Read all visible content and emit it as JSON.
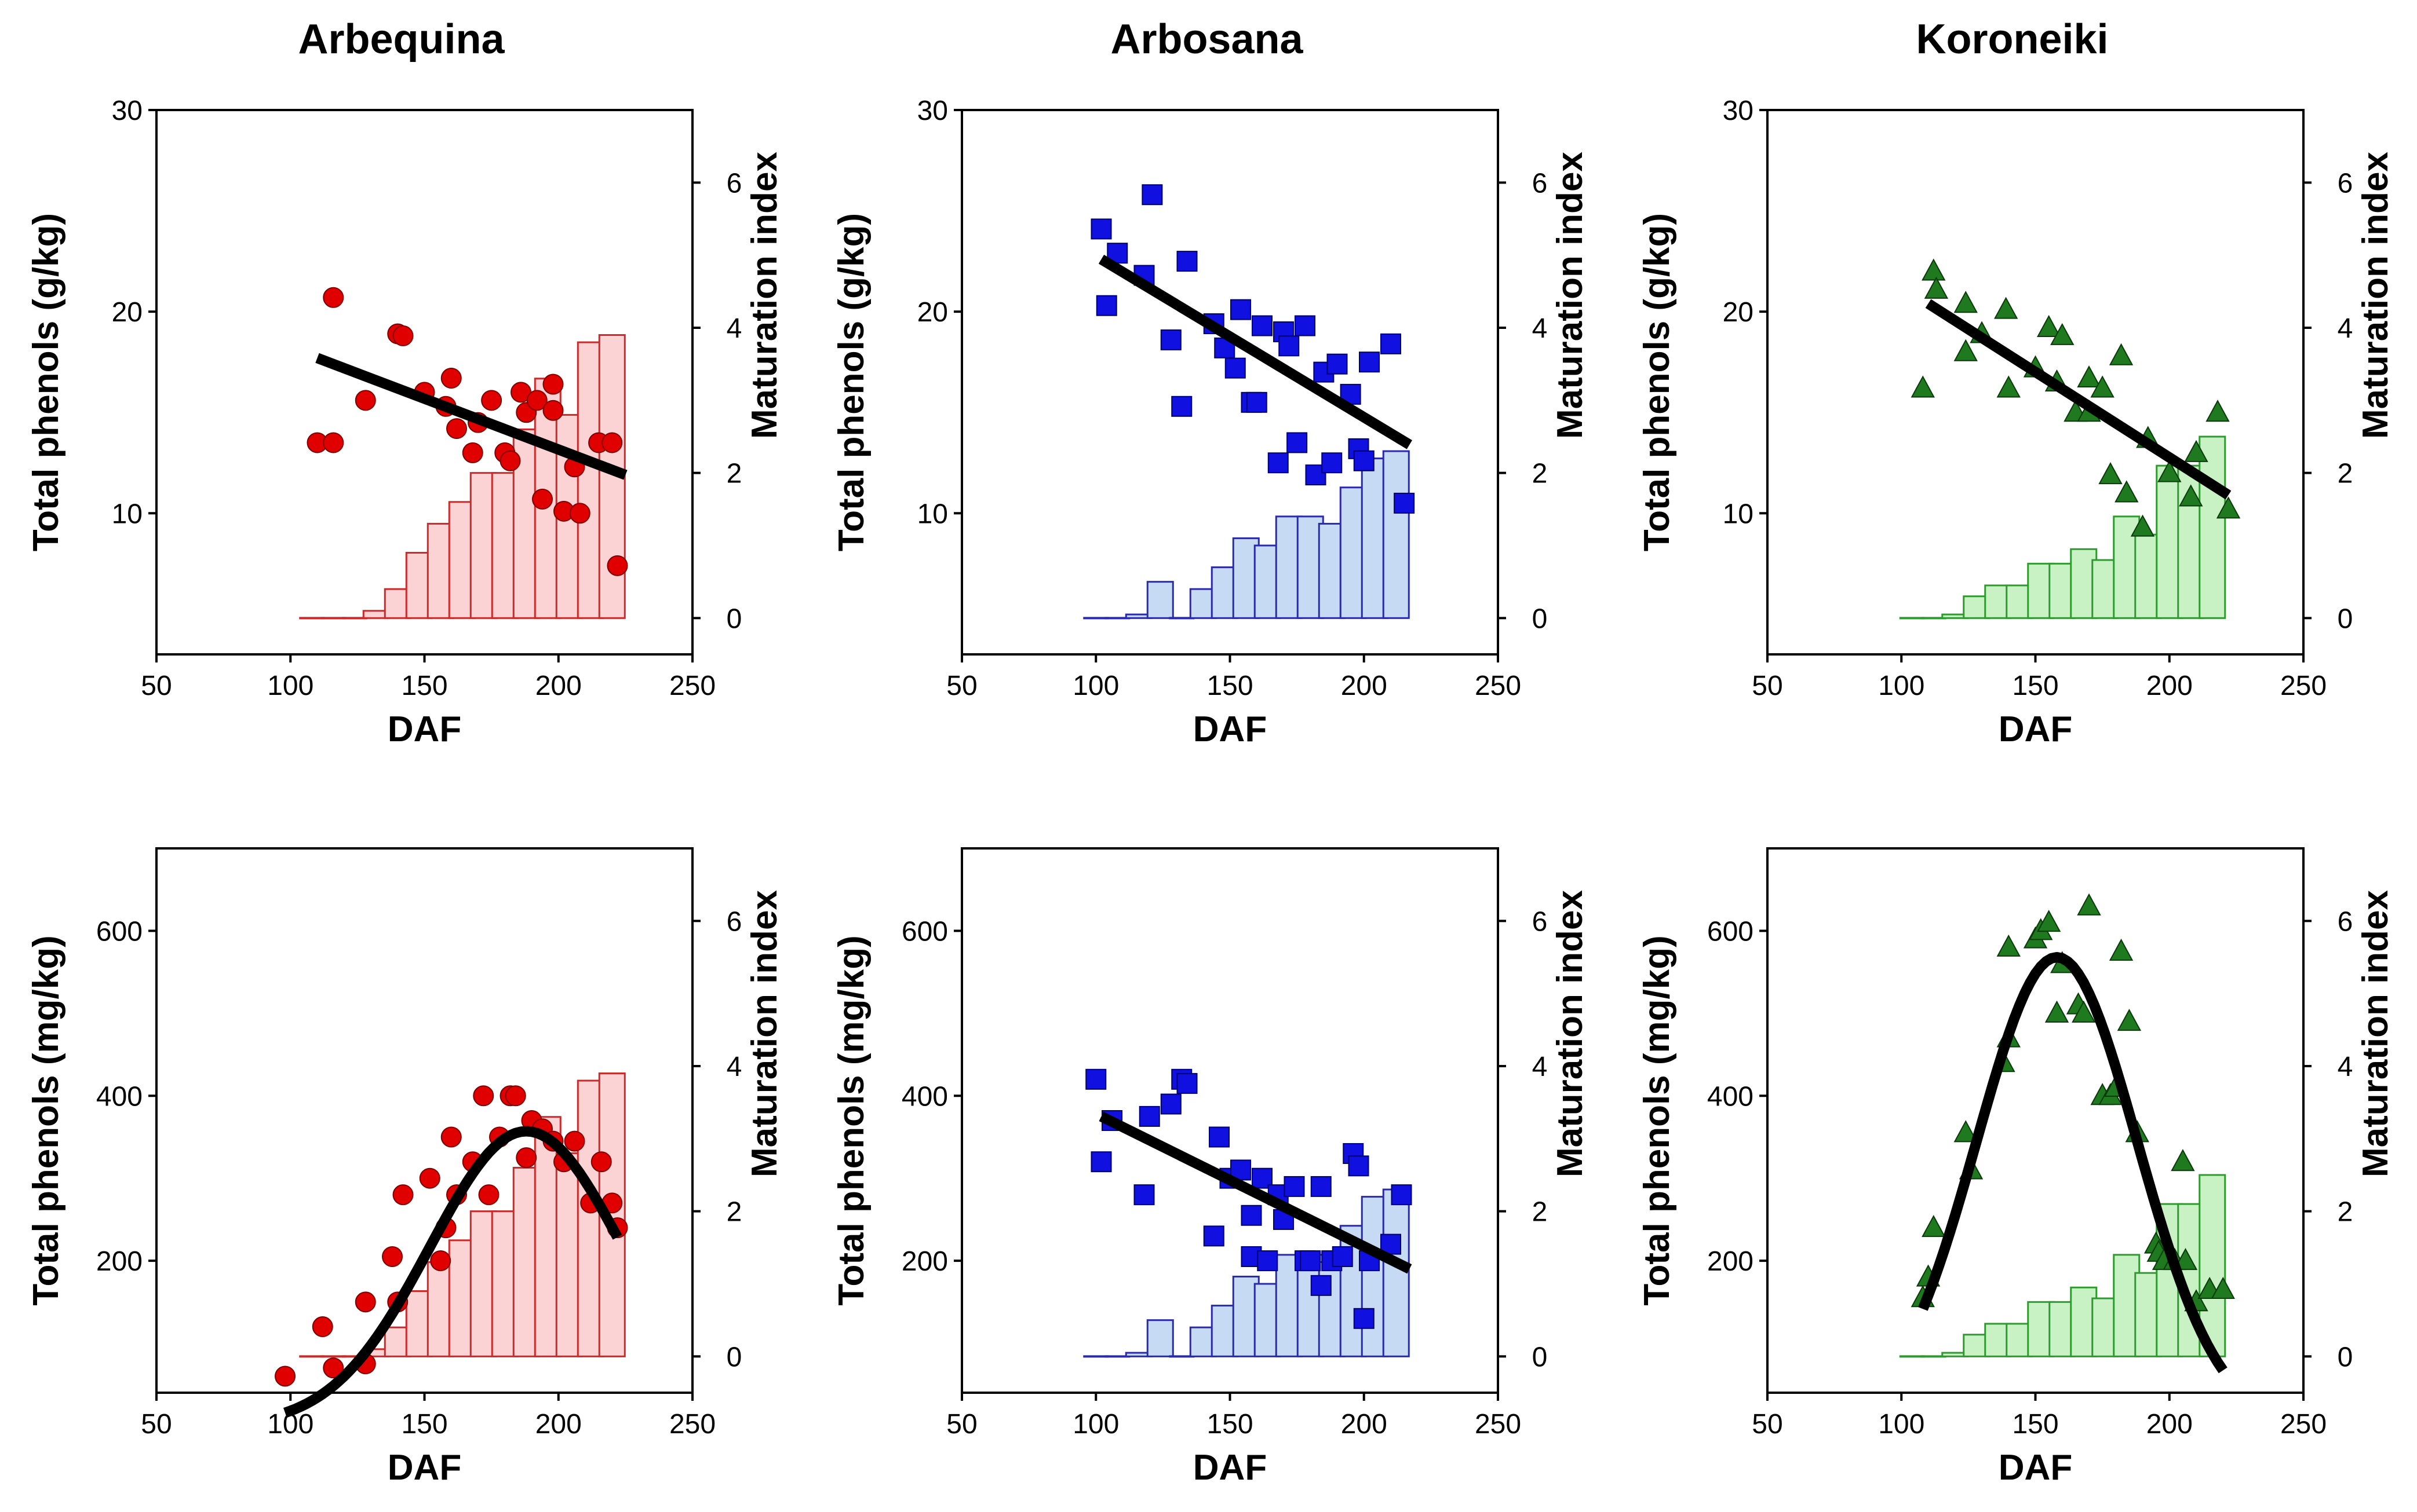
{
  "chart_data": [
    {
      "type": "scatter+bar",
      "title": "Arbequina",
      "xlabel": "DAF",
      "ylabel": "Total phenols (g/kg)",
      "y2label": "Maturation index",
      "xlim": [
        50,
        250
      ],
      "ylim": [
        3,
        30
      ],
      "y2lim": [
        -0.5,
        7
      ],
      "xticks": [
        50,
        100,
        150,
        200,
        250
      ],
      "yticks": [
        10,
        20,
        30
      ],
      "y2ticks": [
        0,
        2,
        4,
        6
      ],
      "color": "#e00000",
      "bar_fill": "#fbd3d5",
      "bar_edge": "#cc2a2a",
      "marker": "circle",
      "points": [
        [
          110,
          13.5
        ],
        [
          116,
          20.7
        ],
        [
          116,
          13.5
        ],
        [
          128,
          15.6
        ],
        [
          140,
          18.9
        ],
        [
          142,
          18.8
        ],
        [
          150,
          16.0
        ],
        [
          158,
          15.3
        ],
        [
          160,
          16.7
        ],
        [
          162,
          14.2
        ],
        [
          168,
          13.0
        ],
        [
          170,
          14.5
        ],
        [
          175,
          15.6
        ],
        [
          180,
          13.0
        ],
        [
          182,
          12.6
        ],
        [
          186,
          16.0
        ],
        [
          188,
          15.0
        ],
        [
          192,
          15.6
        ],
        [
          194,
          10.7
        ],
        [
          198,
          16.4
        ],
        [
          198,
          15.1
        ],
        [
          202,
          10.1
        ],
        [
          206,
          12.3
        ],
        [
          208,
          10.0
        ],
        [
          215,
          13.5
        ],
        [
          220,
          13.5
        ],
        [
          222,
          7.4
        ]
      ],
      "fit": {
        "kind": "linear",
        "points": [
          [
            110,
            17.7
          ],
          [
            225,
            11.9
          ]
        ]
      },
      "bars": {
        "x": [
          108,
          116,
          124,
          132,
          140,
          148,
          156,
          164,
          172,
          180,
          188,
          196,
          204,
          212,
          220
        ],
        "values": [
          0,
          0,
          0,
          0.1,
          0.4,
          0.9,
          1.3,
          1.6,
          2.0,
          2.0,
          2.6,
          3.3,
          2.8,
          3.8,
          3.9
        ]
      }
    },
    {
      "type": "scatter+bar",
      "title": "Arbosana",
      "xlabel": "DAF",
      "ylabel": "Total phenols (g/kg)",
      "y2label": "Maturation index",
      "xlim": [
        50,
        250
      ],
      "ylim": [
        3,
        30
      ],
      "y2lim": [
        -0.5,
        7
      ],
      "xticks": [
        50,
        100,
        150,
        200,
        250
      ],
      "yticks": [
        10,
        20,
        30
      ],
      "y2ticks": [
        0,
        2,
        4,
        6
      ],
      "color": "#1010e0",
      "bar_fill": "#c7daf4",
      "bar_edge": "#2a2ab0",
      "marker": "square",
      "points": [
        [
          102,
          24.1
        ],
        [
          104,
          20.3
        ],
        [
          108,
          22.9
        ],
        [
          118,
          21.8
        ],
        [
          121,
          25.8
        ],
        [
          128,
          18.6
        ],
        [
          132,
          15.3
        ],
        [
          134,
          22.5
        ],
        [
          144,
          19.4
        ],
        [
          148,
          18.2
        ],
        [
          152,
          17.2
        ],
        [
          154,
          20.1
        ],
        [
          158,
          15.5
        ],
        [
          160,
          15.5
        ],
        [
          162,
          19.3
        ],
        [
          168,
          12.5
        ],
        [
          170,
          19.0
        ],
        [
          172,
          18.3
        ],
        [
          175,
          13.5
        ],
        [
          178,
          19.3
        ],
        [
          182,
          11.9
        ],
        [
          185,
          17.0
        ],
        [
          188,
          12.5
        ],
        [
          190,
          17.4
        ],
        [
          195,
          15.9
        ],
        [
          198,
          13.2
        ],
        [
          200,
          12.6
        ],
        [
          202,
          17.5
        ],
        [
          210,
          18.4
        ],
        [
          215,
          10.5
        ]
      ],
      "fit": {
        "kind": "linear",
        "points": [
          [
            102,
            22.6
          ],
          [
            217,
            13.4
          ]
        ]
      },
      "bars": {
        "x": [
          100,
          108,
          116,
          124,
          132,
          140,
          148,
          156,
          164,
          172,
          180,
          188,
          196,
          204,
          212
        ],
        "values": [
          0,
          0,
          0.05,
          0.5,
          0,
          0.4,
          0.7,
          1.1,
          1.0,
          1.4,
          1.4,
          1.3,
          1.8,
          2.2,
          2.3
        ]
      }
    },
    {
      "type": "scatter+bar",
      "title": "Koroneiki",
      "xlabel": "DAF",
      "ylabel": "Total phenols (g/kg)",
      "y2label": "Maturation index",
      "xlim": [
        50,
        250
      ],
      "ylim": [
        3,
        30
      ],
      "y2lim": [
        -0.5,
        7
      ],
      "xticks": [
        50,
        100,
        150,
        200,
        250
      ],
      "yticks": [
        10,
        20,
        30
      ],
      "y2ticks": [
        0,
        2,
        4,
        6
      ],
      "color": "#1f7a1f",
      "bar_fill": "#c8f2c4",
      "bar_edge": "#2f9a2f",
      "marker": "triangle",
      "points": [
        [
          108,
          16.2
        ],
        [
          112,
          22.0
        ],
        [
          113,
          21.1
        ],
        [
          124,
          20.4
        ],
        [
          124,
          18.0
        ],
        [
          130,
          18.9
        ],
        [
          139,
          20.1
        ],
        [
          140,
          16.2
        ],
        [
          150,
          17.2
        ],
        [
          155,
          19.2
        ],
        [
          158,
          16.5
        ],
        [
          160,
          18.8
        ],
        [
          165,
          15.0
        ],
        [
          170,
          16.7
        ],
        [
          170,
          15.0
        ],
        [
          175,
          16.2
        ],
        [
          178,
          11.9
        ],
        [
          182,
          17.8
        ],
        [
          184,
          11.0
        ],
        [
          190,
          9.3
        ],
        [
          192,
          13.7
        ],
        [
          200,
          12.0
        ],
        [
          208,
          10.8
        ],
        [
          210,
          13.0
        ],
        [
          218,
          15.0
        ],
        [
          222,
          10.2
        ]
      ],
      "fit": {
        "kind": "linear",
        "points": [
          [
            110,
            20.4
          ],
          [
            222,
            10.9
          ]
        ]
      },
      "bars": {
        "x": [
          104,
          112,
          120,
          128,
          136,
          144,
          152,
          160,
          168,
          176,
          184,
          192,
          200,
          208,
          216
        ],
        "values": [
          0,
          0,
          0.05,
          0.3,
          0.45,
          0.45,
          0.75,
          0.75,
          0.95,
          0.8,
          1.4,
          1.15,
          2.1,
          2.1,
          2.5
        ]
      }
    },
    {
      "type": "scatter+bar",
      "title": "",
      "xlabel": "DAF",
      "ylabel": "Total phenols (mg/kg)",
      "y2label": "Maturation index",
      "xlim": [
        50,
        250
      ],
      "ylim": [
        40,
        700
      ],
      "y2lim": [
        -0.5,
        7
      ],
      "xticks": [
        50,
        100,
        150,
        200,
        250
      ],
      "yticks": [
        200,
        400,
        600
      ],
      "y2ticks": [
        0,
        2,
        4,
        6
      ],
      "color": "#e00000",
      "bar_fill": "#fbd3d5",
      "bar_edge": "#cc2a2a",
      "marker": "circle",
      "points": [
        [
          98,
          60
        ],
        [
          112,
          120
        ],
        [
          116,
          70
        ],
        [
          128,
          150
        ],
        [
          128,
          75
        ],
        [
          138,
          205
        ],
        [
          140,
          150
        ],
        [
          142,
          280
        ],
        [
          152,
          300
        ],
        [
          156,
          200
        ],
        [
          158,
          240
        ],
        [
          160,
          350
        ],
        [
          162,
          280
        ],
        [
          168,
          320
        ],
        [
          172,
          400
        ],
        [
          174,
          280
        ],
        [
          178,
          350
        ],
        [
          182,
          400
        ],
        [
          184,
          400
        ],
        [
          188,
          325
        ],
        [
          190,
          370
        ],
        [
          194,
          360
        ],
        [
          198,
          345
        ],
        [
          202,
          320
        ],
        [
          206,
          345
        ],
        [
          212,
          270
        ],
        [
          216,
          320
        ],
        [
          220,
          270
        ],
        [
          222,
          240
        ]
      ],
      "fit": {
        "kind": "peak",
        "peak": 357,
        "center": 188,
        "width": 36,
        "baseline": 0
      },
      "bars": {
        "x": [
          108,
          116,
          124,
          132,
          140,
          148,
          156,
          164,
          172,
          180,
          188,
          196,
          204,
          212,
          220
        ],
        "values": [
          0,
          0,
          0,
          0.1,
          0.4,
          0.9,
          1.3,
          1.6,
          2.0,
          2.0,
          2.6,
          3.3,
          2.8,
          3.8,
          3.9
        ]
      }
    },
    {
      "type": "scatter+bar",
      "title": "",
      "xlabel": "DAF",
      "ylabel": "Total phenols (mg/kg)",
      "y2label": "Maturation index",
      "xlim": [
        50,
        250
      ],
      "ylim": [
        40,
        700
      ],
      "y2lim": [
        -0.5,
        7
      ],
      "xticks": [
        50,
        100,
        150,
        200,
        250
      ],
      "yticks": [
        200,
        400,
        600
      ],
      "y2ticks": [
        0,
        2,
        4,
        6
      ],
      "color": "#1010e0",
      "bar_fill": "#c7daf4",
      "bar_edge": "#2a2ab0",
      "marker": "square",
      "points": [
        [
          100,
          420
        ],
        [
          102,
          320
        ],
        [
          106,
          370
        ],
        [
          118,
          280
        ],
        [
          120,
          375
        ],
        [
          128,
          390
        ],
        [
          132,
          420
        ],
        [
          134,
          415
        ],
        [
          144,
          230
        ],
        [
          146,
          350
        ],
        [
          150,
          300
        ],
        [
          154,
          310
        ],
        [
          158,
          255
        ],
        [
          158,
          205
        ],
        [
          162,
          300
        ],
        [
          164,
          200
        ],
        [
          168,
          280
        ],
        [
          170,
          250
        ],
        [
          174,
          290
        ],
        [
          178,
          200
        ],
        [
          180,
          200
        ],
        [
          184,
          290
        ],
        [
          184,
          170
        ],
        [
          188,
          200
        ],
        [
          192,
          205
        ],
        [
          196,
          330
        ],
        [
          198,
          315
        ],
        [
          200,
          130
        ],
        [
          202,
          200
        ],
        [
          210,
          220
        ],
        [
          214,
          280
        ]
      ],
      "fit": {
        "kind": "linear",
        "points": [
          [
            102,
            375
          ],
          [
            217,
            190
          ]
        ]
      },
      "bars": {
        "x": [
          100,
          108,
          116,
          124,
          132,
          140,
          148,
          156,
          164,
          172,
          180,
          188,
          196,
          204,
          212
        ],
        "values": [
          0,
          0,
          0.05,
          0.5,
          0,
          0.4,
          0.7,
          1.1,
          1.0,
          1.4,
          1.4,
          1.3,
          1.8,
          2.2,
          2.3
        ]
      }
    },
    {
      "type": "scatter+bar",
      "title": "",
      "xlabel": "DAF",
      "ylabel": "Total phenols (mg/kg)",
      "y2label": "Maturation index",
      "xlim": [
        50,
        250
      ],
      "ylim": [
        40,
        700
      ],
      "y2lim": [
        -0.5,
        7
      ],
      "xticks": [
        50,
        100,
        150,
        200,
        250
      ],
      "yticks": [
        200,
        400,
        600
      ],
      "y2ticks": [
        0,
        2,
        4,
        6
      ],
      "color": "#1f7a1f",
      "bar_fill": "#c8f2c4",
      "bar_edge": "#2f9a2f",
      "marker": "triangle",
      "points": [
        [
          108,
          155
        ],
        [
          110,
          180
        ],
        [
          112,
          240
        ],
        [
          124,
          355
        ],
        [
          126,
          310
        ],
        [
          138,
          440
        ],
        [
          140,
          470
        ],
        [
          140,
          580
        ],
        [
          150,
          590
        ],
        [
          152,
          600
        ],
        [
          155,
          610
        ],
        [
          158,
          500
        ],
        [
          160,
          560
        ],
        [
          166,
          510
        ],
        [
          168,
          500
        ],
        [
          170,
          630
        ],
        [
          175,
          400
        ],
        [
          178,
          400
        ],
        [
          180,
          410
        ],
        [
          182,
          575
        ],
        [
          185,
          490
        ],
        [
          188,
          355
        ],
        [
          195,
          220
        ],
        [
          196,
          210
        ],
        [
          198,
          200
        ],
        [
          202,
          200
        ],
        [
          205,
          320
        ],
        [
          206,
          200
        ],
        [
          210,
          150
        ],
        [
          215,
          165
        ],
        [
          220,
          165
        ]
      ],
      "fit": {
        "kind": "peak",
        "peak": 568,
        "center": 158,
        "width": 30,
        "baseline": 0
      },
      "bars": {
        "x": [
          104,
          112,
          120,
          128,
          136,
          144,
          152,
          160,
          168,
          176,
          184,
          192,
          200,
          208,
          216
        ],
        "values": [
          0,
          0,
          0.05,
          0.3,
          0.45,
          0.45,
          0.75,
          0.75,
          0.95,
          0.8,
          1.4,
          1.15,
          2.1,
          2.1,
          2.5
        ]
      }
    }
  ]
}
